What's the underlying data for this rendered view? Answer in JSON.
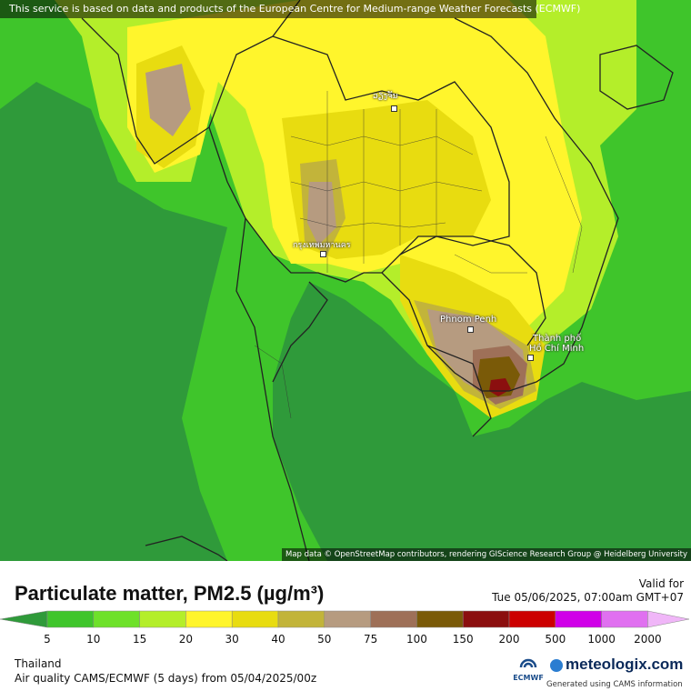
{
  "attribution_top": "This service is based on data and products of the European Centre for Medium-range Weather Forecasts (ECMWF)",
  "attribution_bottom": "Map data © OpenStreetMap contributors, rendering GIScience Research Group @ Heidelberg University",
  "cities": {
    "vientiane": "ວຽງຈັນ",
    "bangkok": "กรุงเทพมหานคร",
    "phnom_penh": "Phnom Penh",
    "hcmc_line1": "Thành phố",
    "hcmc_line2": "Hồ Chí Minh"
  },
  "title": "Particulate matter, PM2.5 (µg/m³)",
  "valid_label": "Valid for",
  "valid_time": "Tue 05/06/2025, 07:00am GMT+07",
  "legend": {
    "ticks": [
      "5",
      "10",
      "15",
      "20",
      "30",
      "40",
      "50",
      "75",
      "100",
      "150",
      "200",
      "500",
      "1000",
      "2000"
    ],
    "colors": [
      "#2f9a3a",
      "#3fc52b",
      "#6ee12a",
      "#b4ee2a",
      "#fff52c",
      "#e8dc10",
      "#c2b43a",
      "#b69b80",
      "#9e7058",
      "#7a5a08",
      "#8b0f0f",
      "#cc0000",
      "#d000e8",
      "#e070f0",
      "#f0b6f8"
    ]
  },
  "footer": {
    "region": "Thailand",
    "model": "Air quality CAMS/ECMWF (5 days) from 05/04/2025/00z",
    "ecmwf_label": "ECMWF",
    "brand": "meteologix.com",
    "generated": "Generated using CAMS information"
  }
}
